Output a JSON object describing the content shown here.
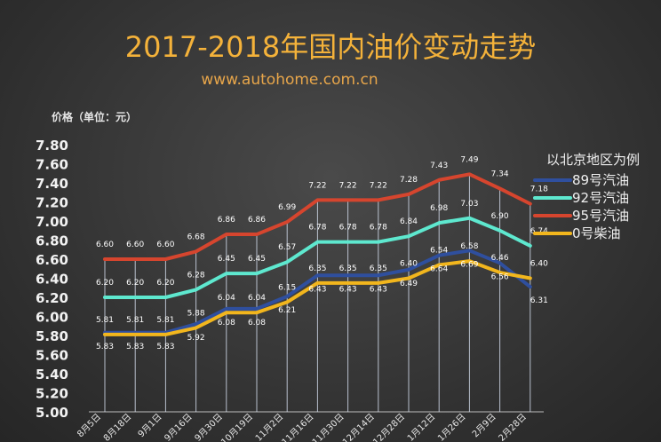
{
  "chart_data": {
    "type": "line",
    "title": "2017-2018年国内油价变动走势",
    "subtitle": "www.autohome.com.cn",
    "ylabel": "价格（单位：元）",
    "xlabel": "",
    "ylim": [
      5.0,
      7.8
    ],
    "y_ticks": [
      "5.00",
      "5.20",
      "5.40",
      "5.60",
      "5.80",
      "6.00",
      "6.20",
      "6.40",
      "6.60",
      "6.80",
      "7.00",
      "7.20",
      "7.40",
      "7.60",
      "7.80"
    ],
    "grid": false,
    "legend": {
      "title": "以北京地区为例",
      "position": "right"
    },
    "categories": [
      "8月5日",
      "8月18日",
      "9月1日",
      "9月16日",
      "9月30日",
      "10月19日",
      "11月2日",
      "11月16日",
      "11月30日",
      "12月14日",
      "12月28日",
      "1月12日",
      "1月26日",
      "2月9日",
      "2月28日"
    ],
    "series": [
      {
        "name": "89号汽油",
        "color": "#2f4f9e",
        "values": [
          5.83,
          5.83,
          5.83,
          5.92,
          6.08,
          6.08,
          6.21,
          6.43,
          6.43,
          6.43,
          6.49,
          6.64,
          6.69,
          6.56,
          6.31
        ]
      },
      {
        "name": "92号汽油",
        "color": "#5ee8cf",
        "values": [
          6.2,
          6.2,
          6.2,
          6.28,
          6.45,
          6.45,
          6.57,
          6.78,
          6.78,
          6.78,
          6.84,
          6.98,
          7.03,
          6.9,
          6.74
        ]
      },
      {
        "name": "95号汽油",
        "color": "#d6452e",
        "values": [
          6.6,
          6.6,
          6.6,
          6.68,
          6.86,
          6.86,
          6.99,
          7.22,
          7.22,
          7.22,
          7.28,
          7.43,
          7.49,
          7.34,
          7.18
        ]
      },
      {
        "name": "0号柴油",
        "color": "#f2b61d",
        "values": [
          5.81,
          5.81,
          5.81,
          5.88,
          6.04,
          6.04,
          6.15,
          6.35,
          6.35,
          6.35,
          6.4,
          6.54,
          6.58,
          6.46,
          6.4
        ]
      }
    ]
  }
}
